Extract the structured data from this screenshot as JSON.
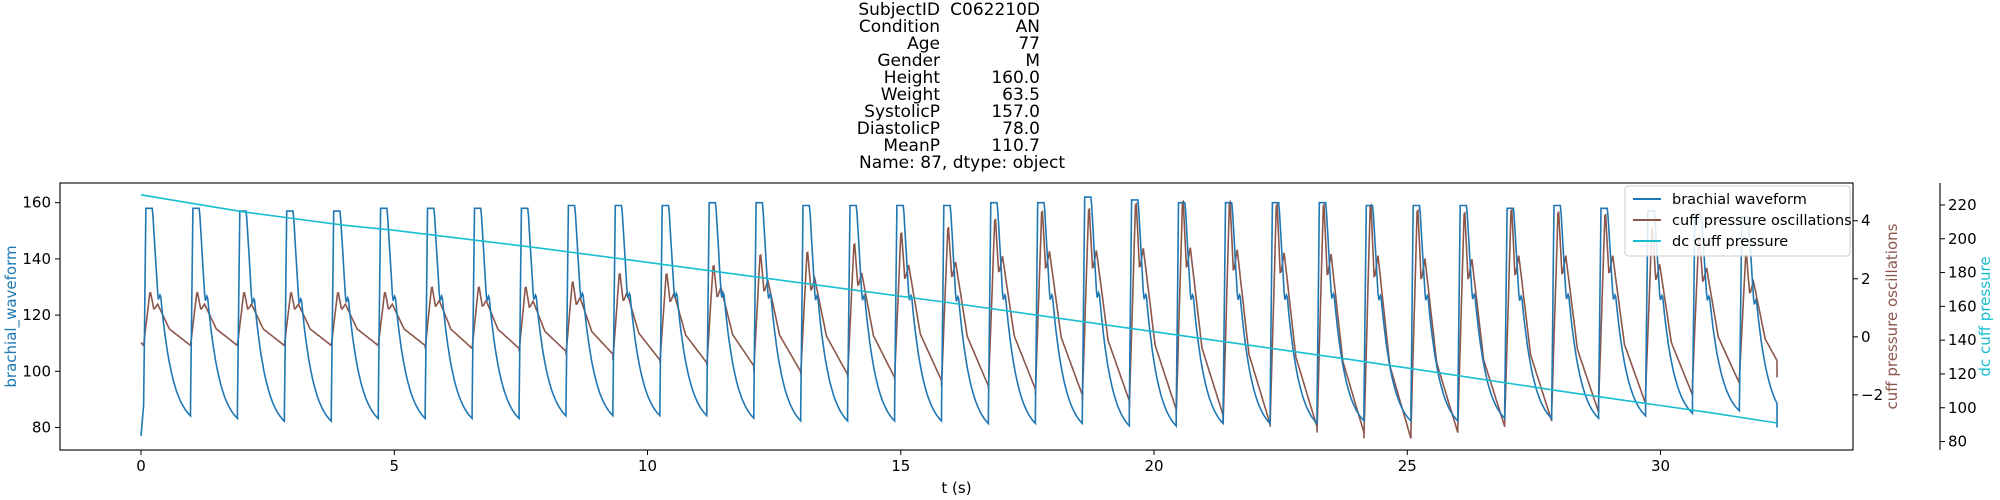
{
  "title_lines": [
    {
      "key": "SubjectID",
      "value": "C062210D"
    },
    {
      "key": "Condition",
      "value": "AN"
    },
    {
      "key": "Age",
      "value": "77"
    },
    {
      "key": "Gender",
      "value": "M"
    },
    {
      "key": "Height",
      "value": "160.0"
    },
    {
      "key": "Weight",
      "value": "63.5"
    },
    {
      "key": "SystolicP",
      "value": "157.0"
    },
    {
      "key": "DiastolicP",
      "value": "78.0"
    },
    {
      "key": "MeanP",
      "value": "110.7"
    }
  ],
  "title_footer": "Name: 87, dtype: object",
  "chart_data": {
    "type": "line",
    "xlabel": "t (s)",
    "xlim": [
      -1.6,
      33.8
    ],
    "xticks": [
      0,
      5,
      10,
      15,
      20,
      25,
      30
    ],
    "grid": false,
    "legend_position": "top-right",
    "axes": {
      "left": {
        "label": "brachial_waveform",
        "color": "#1f77b4",
        "ylim": [
          72,
          167
        ],
        "ticks": [
          80,
          100,
          120,
          140,
          160
        ]
      },
      "right1": {
        "label": "cuff pressure oscillations",
        "color": "#8c564b",
        "ylim": [
          -3.9,
          5.3
        ],
        "ticks": [
          -2,
          0,
          2,
          4
        ]
      },
      "right2": {
        "label": "dc cuff pressure",
        "color": "#17becf",
        "ylim": [
          75,
          233
        ],
        "ticks": [
          80,
          100,
          120,
          140,
          160,
          180,
          200,
          220
        ]
      }
    },
    "series": [
      {
        "name": "brachial waveform",
        "axis": "left",
        "color": "#1f77b4",
        "beat_period": 0.9267,
        "first_beat_start": 0.05,
        "duration": 32.3,
        "start_value": 77,
        "peaks": [
          158,
          158,
          157,
          157,
          157,
          158,
          158,
          158,
          158,
          159,
          159,
          159,
          160,
          160,
          159,
          159,
          159,
          159,
          160,
          160,
          162,
          161,
          160,
          160,
          160,
          160,
          159,
          159,
          159,
          158,
          159,
          158,
          157,
          156,
          155
        ],
        "troughs": [
          80,
          79,
          78,
          78,
          79,
          79,
          79,
          79,
          80,
          80,
          80,
          80,
          79,
          78,
          78,
          78,
          78,
          77,
          77,
          77,
          76,
          76,
          77,
          77,
          77,
          78,
          78,
          78,
          79,
          79,
          79,
          80,
          81,
          82,
          80
        ],
        "end_value": 80
      },
      {
        "name": "cuff pressure oscillations",
        "axis": "right1",
        "color": "#8c564b",
        "beat_period": 0.9267,
        "first_beat_start": 0.05,
        "duration": 32.3,
        "start_value": -0.2,
        "peaks": [
          1.6,
          1.6,
          1.6,
          1.6,
          1.6,
          1.6,
          1.8,
          1.8,
          1.8,
          2.0,
          2.3,
          2.3,
          2.6,
          3.0,
          3.1,
          3.4,
          3.8,
          4.0,
          4.3,
          4.6,
          4.7,
          4.9,
          5.0,
          5.0,
          4.9,
          4.9,
          4.9,
          4.7,
          4.6,
          4.7,
          4.6,
          4.5,
          4.0,
          3.7,
          3.0
        ],
        "troughs": [
          -0.3,
          -0.3,
          -0.3,
          -0.3,
          -0.3,
          -0.3,
          -0.4,
          -0.4,
          -0.5,
          -0.6,
          -0.8,
          -0.9,
          -1.0,
          -1.2,
          -1.3,
          -1.4,
          -1.5,
          -1.7,
          -1.8,
          -2.0,
          -2.2,
          -2.5,
          -2.7,
          -3.0,
          -3.1,
          -3.3,
          -3.5,
          -3.3,
          -3.1,
          -2.9,
          -2.6,
          -2.3,
          -2.0,
          -1.6,
          -1.4
        ],
        "end_value": -1.4
      },
      {
        "name": "dc cuff pressure",
        "axis": "right2",
        "color": "#17becf",
        "x": [
          0,
          1,
          2,
          3,
          4,
          5,
          8,
          12,
          16,
          20,
          24,
          28,
          31,
          32.3
        ],
        "values": [
          226,
          221,
          216,
          212,
          208,
          205,
          194,
          178,
          162,
          145,
          128,
          110,
          97,
          91
        ]
      }
    ]
  }
}
